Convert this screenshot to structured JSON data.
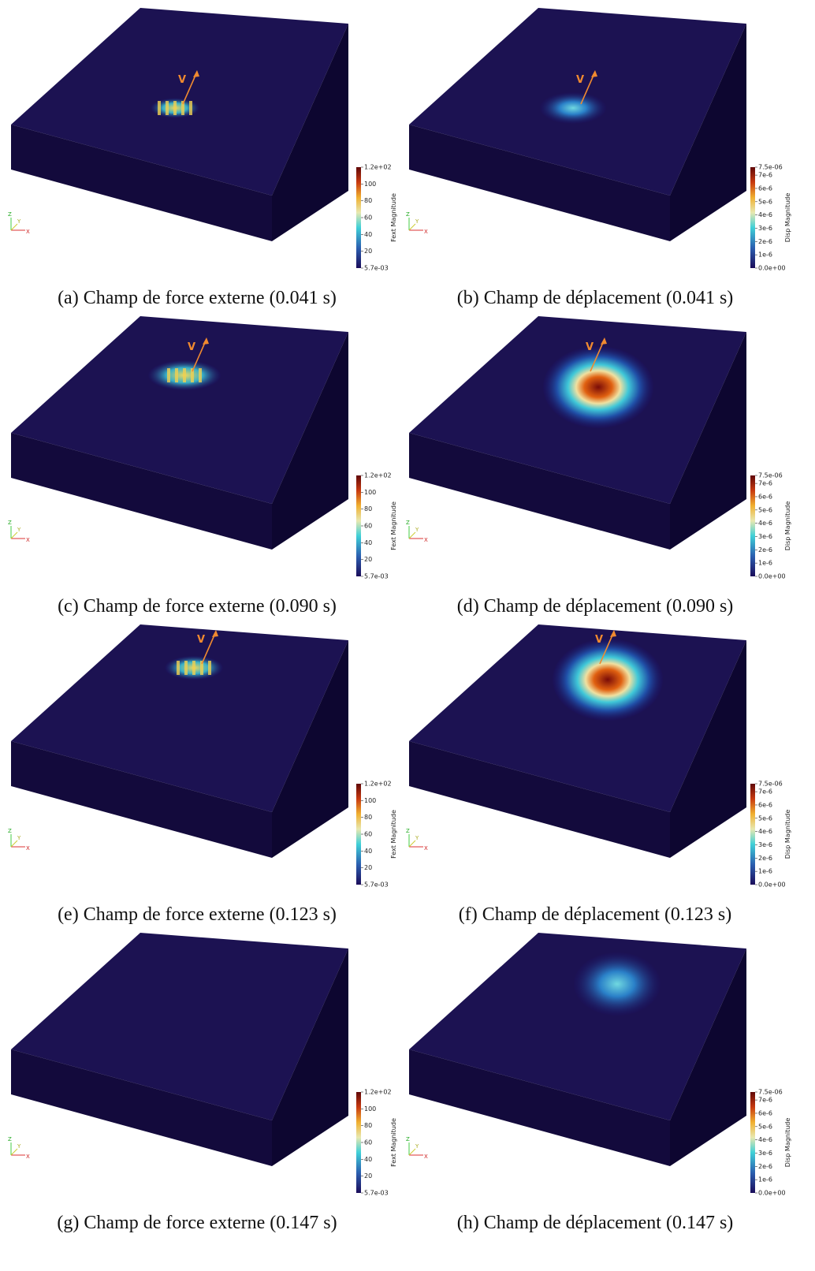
{
  "vector_label": "V",
  "axes": [
    "Z",
    "Y",
    "X"
  ],
  "colorbars": {
    "force": {
      "title": "Fext Magnitude",
      "ticks": [
        "1.2e+02",
        "100",
        "80",
        "60",
        "40",
        "20",
        "5.7e-03"
      ]
    },
    "disp": {
      "title": "Disp Magnitude",
      "ticks": [
        "7.5e-06",
        "7e-6",
        "6e-6",
        "5e-6",
        "4e-6",
        "3e-6",
        "2e-6",
        "1e-6",
        "0.0e+00"
      ]
    }
  },
  "rows": [
    {
      "left": {
        "caption": "(a) Champ de force externe (0.041 s)",
        "arrow": true
      },
      "right": {
        "caption": "(b) Champ de déplacement (0.041 s)",
        "arrow": true
      }
    },
    {
      "left": {
        "caption": "(c) Champ de force externe (0.090 s)",
        "arrow": true
      },
      "right": {
        "caption": "(d) Champ de déplacement (0.090 s)",
        "arrow": true
      }
    },
    {
      "left": {
        "caption": "(e) Champ de force externe (0.123 s)",
        "arrow": true
      },
      "right": {
        "caption": "(f) Champ de déplacement (0.123 s)",
        "arrow": true
      }
    },
    {
      "left": {
        "caption": "(g) Champ de force externe (0.147 s)",
        "arrow": false
      },
      "right": {
        "caption": "(h) Champ de déplacement (0.147 s)",
        "arrow": false
      }
    }
  ]
}
